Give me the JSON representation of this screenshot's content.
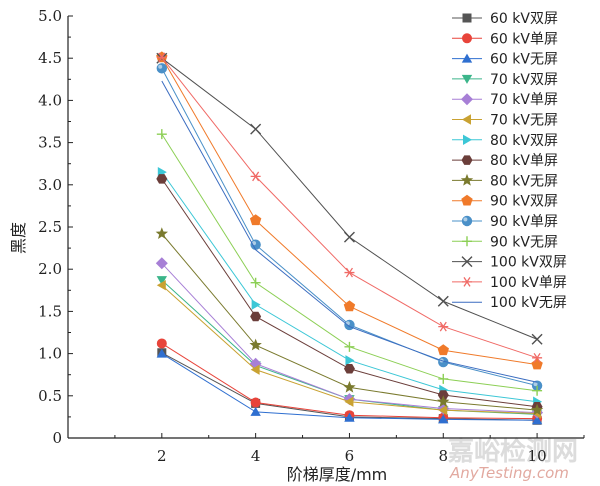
{
  "chart_data": {
    "type": "line",
    "xlabel": "阶梯厚度/mm",
    "ylabel": "黑度",
    "x": [
      2,
      4,
      6,
      8,
      10
    ],
    "xlim": [
      0,
      11
    ],
    "ylim": [
      0,
      5.0
    ],
    "xticks": [
      "2",
      "4",
      "6",
      "8",
      "10"
    ],
    "yticks": [
      "0",
      "0.5",
      "1.0",
      "1.5",
      "2.0",
      "2.5",
      "3.0",
      "3.5",
      "4.0",
      "4.5",
      "5.0"
    ],
    "grid": false,
    "legend_position": "top-right",
    "series": [
      {
        "name": "60 kV双屏",
        "marker": "square",
        "color": "#555555",
        "values": [
          1.01,
          0.41,
          0.25,
          0.23,
          0.21
        ]
      },
      {
        "name": "60 kV单屏",
        "marker": "circle",
        "color": "#e8443a",
        "values": [
          1.12,
          0.42,
          0.27,
          0.24,
          0.23
        ]
      },
      {
        "name": "60 kV无屏",
        "marker": "triangle-up",
        "color": "#2f6fd0",
        "values": [
          1.0,
          0.31,
          0.24,
          0.22,
          0.21
        ]
      },
      {
        "name": "70 kV双屏",
        "marker": "triangle-down",
        "color": "#3bb58a",
        "values": [
          1.87,
          0.86,
          0.46,
          0.33,
          0.28
        ]
      },
      {
        "name": "70 kV单屏",
        "marker": "diamond",
        "color": "#a77fd6",
        "values": [
          2.07,
          0.88,
          0.46,
          0.35,
          0.3
        ]
      },
      {
        "name": "70 kV无屏",
        "marker": "triangle-left",
        "color": "#c9a232",
        "values": [
          1.81,
          0.81,
          0.43,
          0.33,
          0.29
        ]
      },
      {
        "name": "80 kV双屏",
        "marker": "triangle-right",
        "color": "#3cc7d6",
        "values": [
          3.15,
          1.58,
          0.92,
          0.57,
          0.43
        ]
      },
      {
        "name": "80 kV单屏",
        "marker": "hexagon",
        "color": "#6b3e3a",
        "values": [
          3.07,
          1.44,
          0.82,
          0.51,
          0.37
        ]
      },
      {
        "name": "80 kV无屏",
        "marker": "star",
        "color": "#7a7a2e",
        "values": [
          2.42,
          1.1,
          0.6,
          0.43,
          0.33
        ]
      },
      {
        "name": "90 kV双屏",
        "marker": "pentagon",
        "color": "#f07a2a",
        "values": [
          4.51,
          2.58,
          1.56,
          1.04,
          0.87
        ]
      },
      {
        "name": "90 kV单屏",
        "marker": "sphere",
        "color": "#4a90c8",
        "values": [
          4.38,
          2.29,
          1.34,
          0.9,
          0.62
        ]
      },
      {
        "name": "90 kV无屏",
        "marker": "plus",
        "color": "#8ccf55",
        "values": [
          3.6,
          1.84,
          1.08,
          0.7,
          0.56
        ]
      },
      {
        "name": "100 kV双屏",
        "marker": "x",
        "color": "#505050",
        "values": [
          4.5,
          3.66,
          2.38,
          1.62,
          1.17
        ]
      },
      {
        "name": "100 kV单屏",
        "marker": "asterisk",
        "color": "#f06a66",
        "values": [
          4.51,
          3.1,
          1.96,
          1.32,
          0.95
        ]
      },
      {
        "name": "100 kV无屏",
        "marker": "none",
        "color": "#3a6cc0",
        "values": [
          4.23,
          2.23,
          1.32,
          0.91,
          0.66
        ]
      }
    ]
  },
  "watermark": {
    "text_cn": "嘉峪检测网",
    "text_en": "AnyTesting.com"
  }
}
